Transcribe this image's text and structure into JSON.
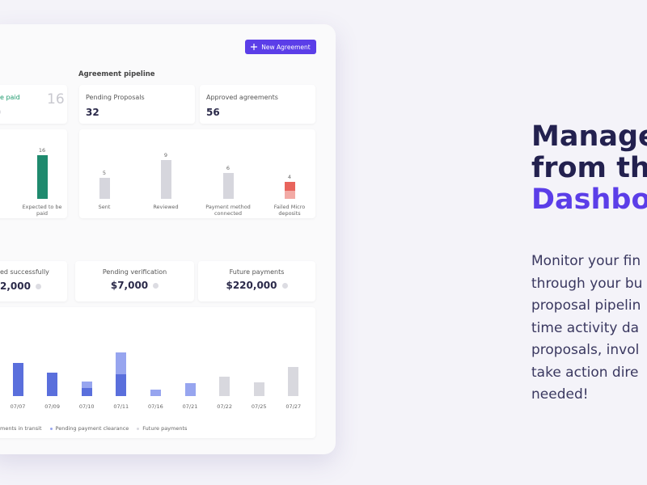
{
  "header": {
    "button": "New Agreement",
    "section_title": "Agreement pipeline"
  },
  "stats_top": [
    {
      "label": "e paid",
      "value": "16"
    },
    {
      "label": "Pending Proposals",
      "value": "32"
    },
    {
      "label": "Approved agreements",
      "value": "56"
    }
  ],
  "stats_bottom": [
    {
      "label": "ed successfully",
      "value": "2,000"
    },
    {
      "label": "Pending verification",
      "value": "$7,000"
    },
    {
      "label": "Future payments",
      "value": "$220,000"
    }
  ],
  "chart_data": [
    {
      "type": "bar",
      "categories": [
        "Expected to be paid"
      ],
      "values": [
        16
      ],
      "colors": [
        "#1f8a6e"
      ],
      "ylim": [
        0,
        16
      ]
    },
    {
      "type": "bar",
      "categories": [
        "Sent",
        "Reviewed",
        "Payment method connected",
        "Failed Micro deposits"
      ],
      "values": [
        5,
        9,
        6,
        4
      ],
      "colors": [
        "#d6d6dd",
        "#d6d6dd",
        "#d6d6dd",
        "#e8645c"
      ],
      "ylim": [
        0,
        10
      ]
    },
    {
      "type": "stacked_bar",
      "categories": [
        "07/07",
        "07/09",
        "07/10",
        "07/11",
        "07/16",
        "07/21",
        "07/22",
        "07/25",
        "07/27"
      ],
      "ylim": [
        0,
        60
      ],
      "series": [
        {
          "name": "ments in transit",
          "color": "#5a6fdc",
          "values": [
            41,
            29,
            10,
            27,
            null,
            null,
            null,
            null,
            null
          ]
        },
        {
          "name": "Pending payment clearance",
          "color": "#97a5ef",
          "values": [
            null,
            null,
            8,
            27,
            8,
            16,
            null,
            null,
            null
          ]
        },
        {
          "name": "Future payments",
          "color": "#d8d8de",
          "values": [
            null,
            null,
            null,
            null,
            null,
            null,
            24,
            17,
            36
          ]
        }
      ]
    }
  ],
  "headline": {
    "lines": [
      "Manage",
      "from the",
      "Dashbo"
    ]
  },
  "body": {
    "lines": [
      "Monitor your fin",
      "through your bu",
      "proposal pipelin",
      "time activity da",
      "proposals, invol",
      "take action dire",
      "needed!"
    ]
  }
}
